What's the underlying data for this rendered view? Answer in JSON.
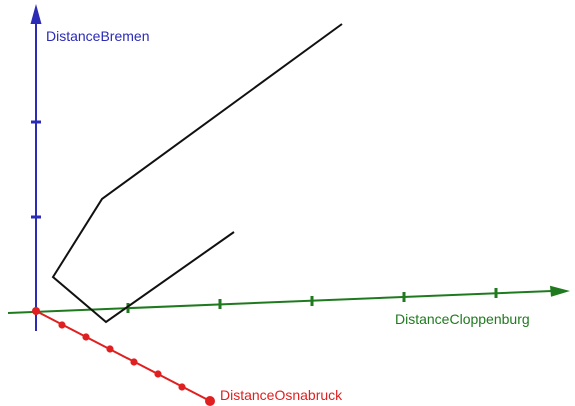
{
  "scene": {
    "axes": {
      "vertical": {
        "label": "DistanceBremen",
        "color": "#2b2bb5"
      },
      "horizontal": {
        "label": "DistanceCloppenburg",
        "color": "#1f7a1f"
      },
      "depth": {
        "label": "DistanceOsnabruck",
        "color": "#e02020"
      }
    },
    "curve": {
      "color": "#111111"
    },
    "origin": {
      "color": "#e02020"
    }
  }
}
